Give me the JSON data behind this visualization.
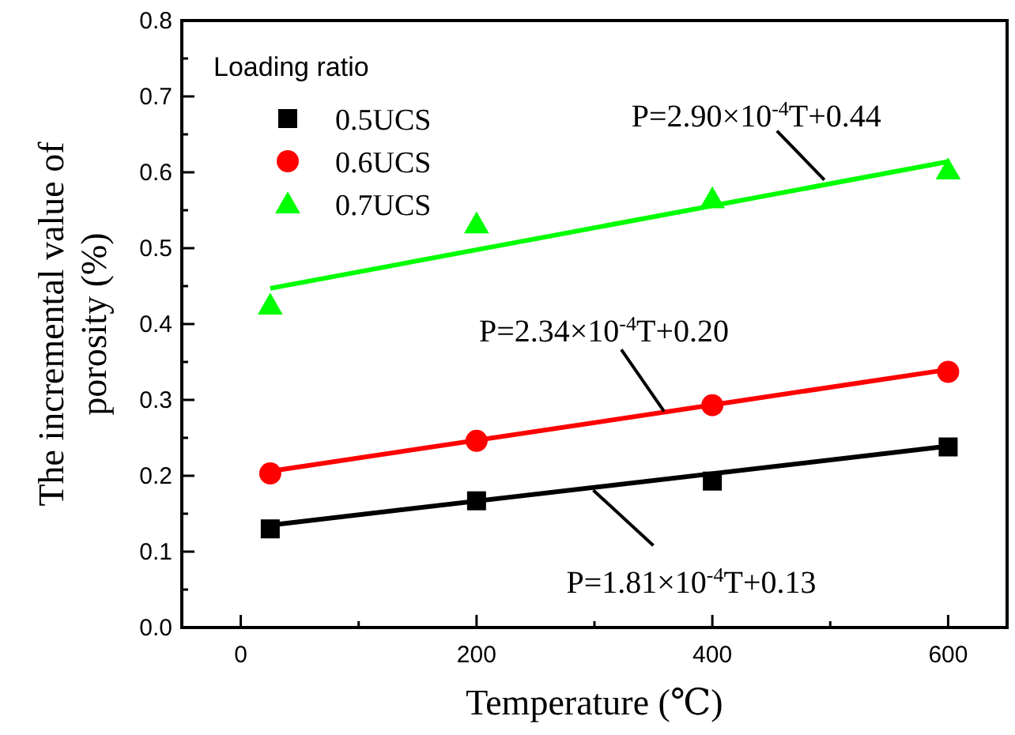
{
  "chart_data": {
    "type": "scatter",
    "xlabel": "Temperature (℃)",
    "ylabel": "The incremental value of porosity (%)",
    "legend_title": "Loading ratio",
    "legend": "top left",
    "xlim": [
      -50,
      650
    ],
    "xticks": [
      0,
      {
        "value": 100,
        "label": null
      },
      200,
      {
        "value": 300,
        "label": null
      },
      400,
      {
        "value": 500,
        "label": null
      },
      600
    ],
    "ylim": [
      0,
      0.8
    ],
    "yticks": [
      {
        "value": 0,
        "label": "0.0"
      },
      {
        "value": 0.05,
        "label": null
      },
      0.1,
      {
        "value": 0.15,
        "label": null
      },
      0.2,
      {
        "value": 0.25,
        "label": null
      },
      0.3,
      {
        "value": 0.35,
        "label": null
      },
      0.4,
      {
        "value": 0.45,
        "label": null
      },
      0.5,
      {
        "value": 0.55,
        "label": null
      },
      0.6,
      {
        "value": 0.65,
        "label": null
      },
      0.7,
      {
        "value": 0.75,
        "label": null
      },
      0.8
    ],
    "grid": false,
    "series": [
      {
        "name": "0.5UCS",
        "marker": "square",
        "color": "#000000",
        "x": [
          25,
          200,
          400,
          600
        ],
        "values": [
          0.13,
          0.167,
          0.193,
          0.238
        ]
      },
      {
        "name": "0.6UCS",
        "marker": "circle",
        "color": "#ff0000",
        "x": [
          25,
          200,
          400,
          600
        ],
        "values": [
          0.203,
          0.246,
          0.293,
          0.337
        ]
      },
      {
        "name": "0.7UCS",
        "marker": "triangle",
        "color": "#00ff00",
        "x": [
          25,
          200,
          400,
          600
        ],
        "values": [
          0.425,
          0.532,
          0.565,
          0.603
        ]
      },
      {
        "type": "line",
        "color": "#000000",
        "x": [
          25,
          600
        ],
        "values": [
          0.135,
          0.239
        ]
      },
      {
        "type": "line",
        "color": "#ff0000",
        "x": [
          25,
          600
        ],
        "values": [
          0.206,
          0.34
        ]
      },
      {
        "type": "line",
        "color": "#00ff00",
        "x": [
          25,
          600
        ],
        "values": [
          0.447,
          0.614
        ]
      }
    ],
    "annotations": [
      {
        "text": "P=2.90×10$^{-4}$T+0.44",
        "x": 495,
        "y": 0.59
      },
      {
        "text": "P=2.34×10$^{-4}$T+0.20",
        "x": 359,
        "y": 0.285
      },
      {
        "text": "P=1.81×10$^{-4}$T+0.13",
        "x": 299,
        "y": 0.181
      }
    ]
  }
}
